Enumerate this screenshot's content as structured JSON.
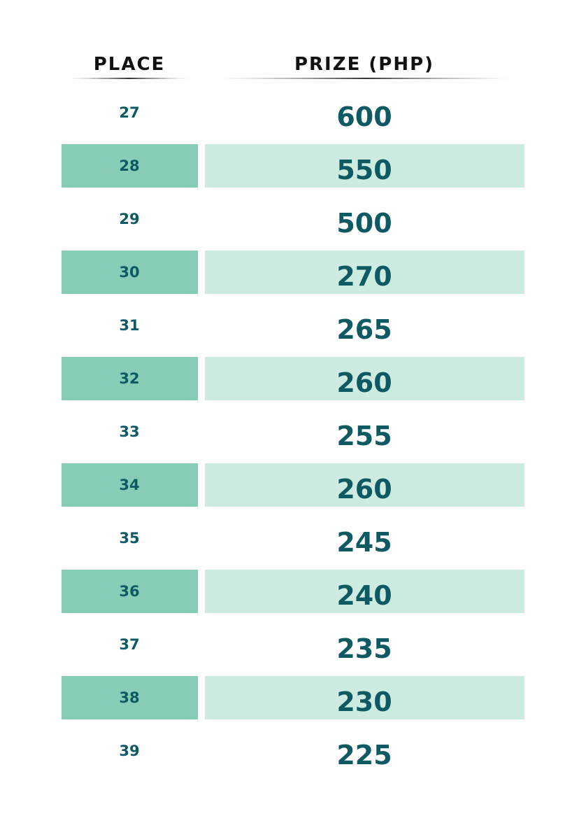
{
  "table": {
    "header": [
      "PLACE",
      "PRIZE (PHP)"
    ],
    "rows": [
      [
        27,
        600
      ],
      [
        28,
        550
      ],
      [
        29,
        500
      ],
      [
        30,
        270
      ],
      [
        31,
        265
      ],
      [
        32,
        260
      ],
      [
        33,
        255
      ],
      [
        34,
        260
      ],
      [
        35,
        245
      ],
      [
        36,
        240
      ],
      [
        37,
        235
      ],
      [
        38,
        230
      ],
      [
        39,
        225
      ]
    ]
  }
}
